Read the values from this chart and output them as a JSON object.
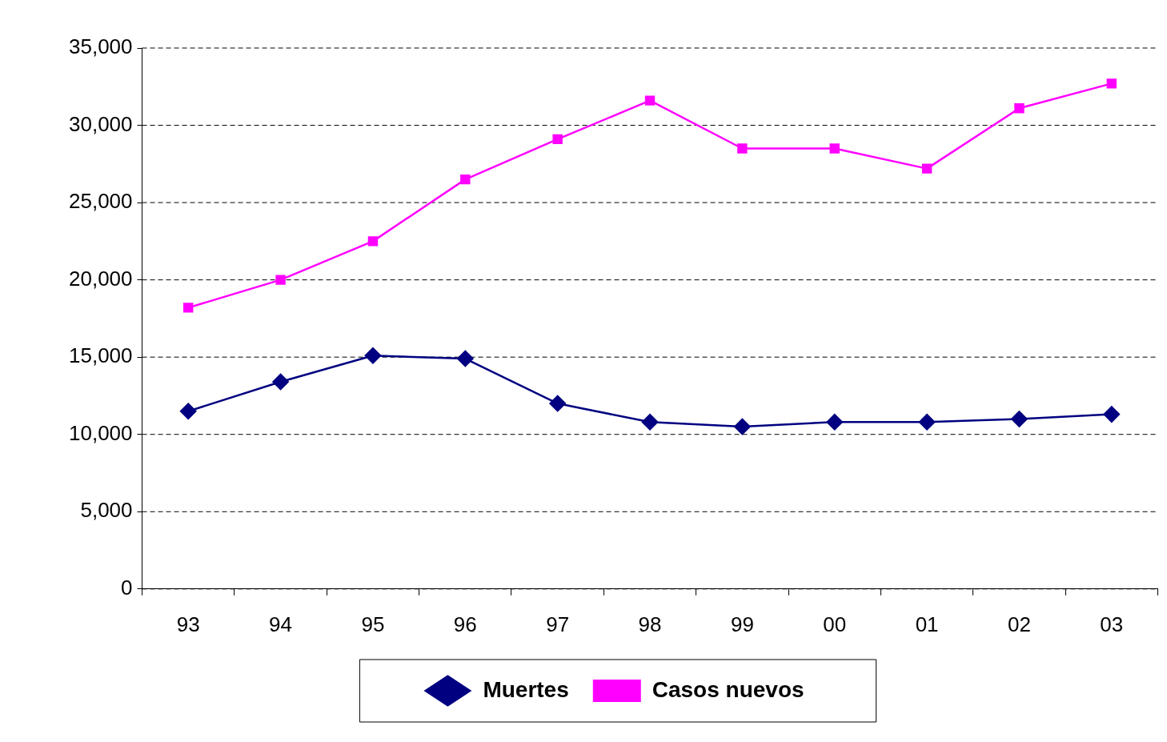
{
  "chart_data": {
    "type": "line",
    "categories": [
      "93",
      "94",
      "95",
      "96",
      "97",
      "98",
      "99",
      "00",
      "01",
      "02",
      "03"
    ],
    "series": [
      {
        "name": "Muertes",
        "color": "#000080",
        "marker": "diamond",
        "values": [
          11500,
          13400,
          15100,
          14900,
          12000,
          10800,
          10500,
          10800,
          10800,
          11000,
          11300
        ]
      },
      {
        "name": "Casos nuevos",
        "color": "#ff00ff",
        "marker": "square",
        "values": [
          18200,
          20000,
          22500,
          26500,
          29100,
          31600,
          28500,
          28500,
          27200,
          31100,
          32700
        ]
      }
    ],
    "ylim": [
      0,
      35000
    ],
    "yticks": [
      {
        "value": 0,
        "label": "0"
      },
      {
        "value": 5000,
        "label": "5,000"
      },
      {
        "value": 10000,
        "label": "10,000"
      },
      {
        "value": 15000,
        "label": "15,000"
      },
      {
        "value": 20000,
        "label": "20,000"
      },
      {
        "value": 25000,
        "label": "25,000"
      },
      {
        "value": 30000,
        "label": "30,000"
      },
      {
        "value": 35000,
        "label": "35,000"
      }
    ],
    "grid": "y",
    "legend": "bottom",
    "line_style": "solid"
  }
}
